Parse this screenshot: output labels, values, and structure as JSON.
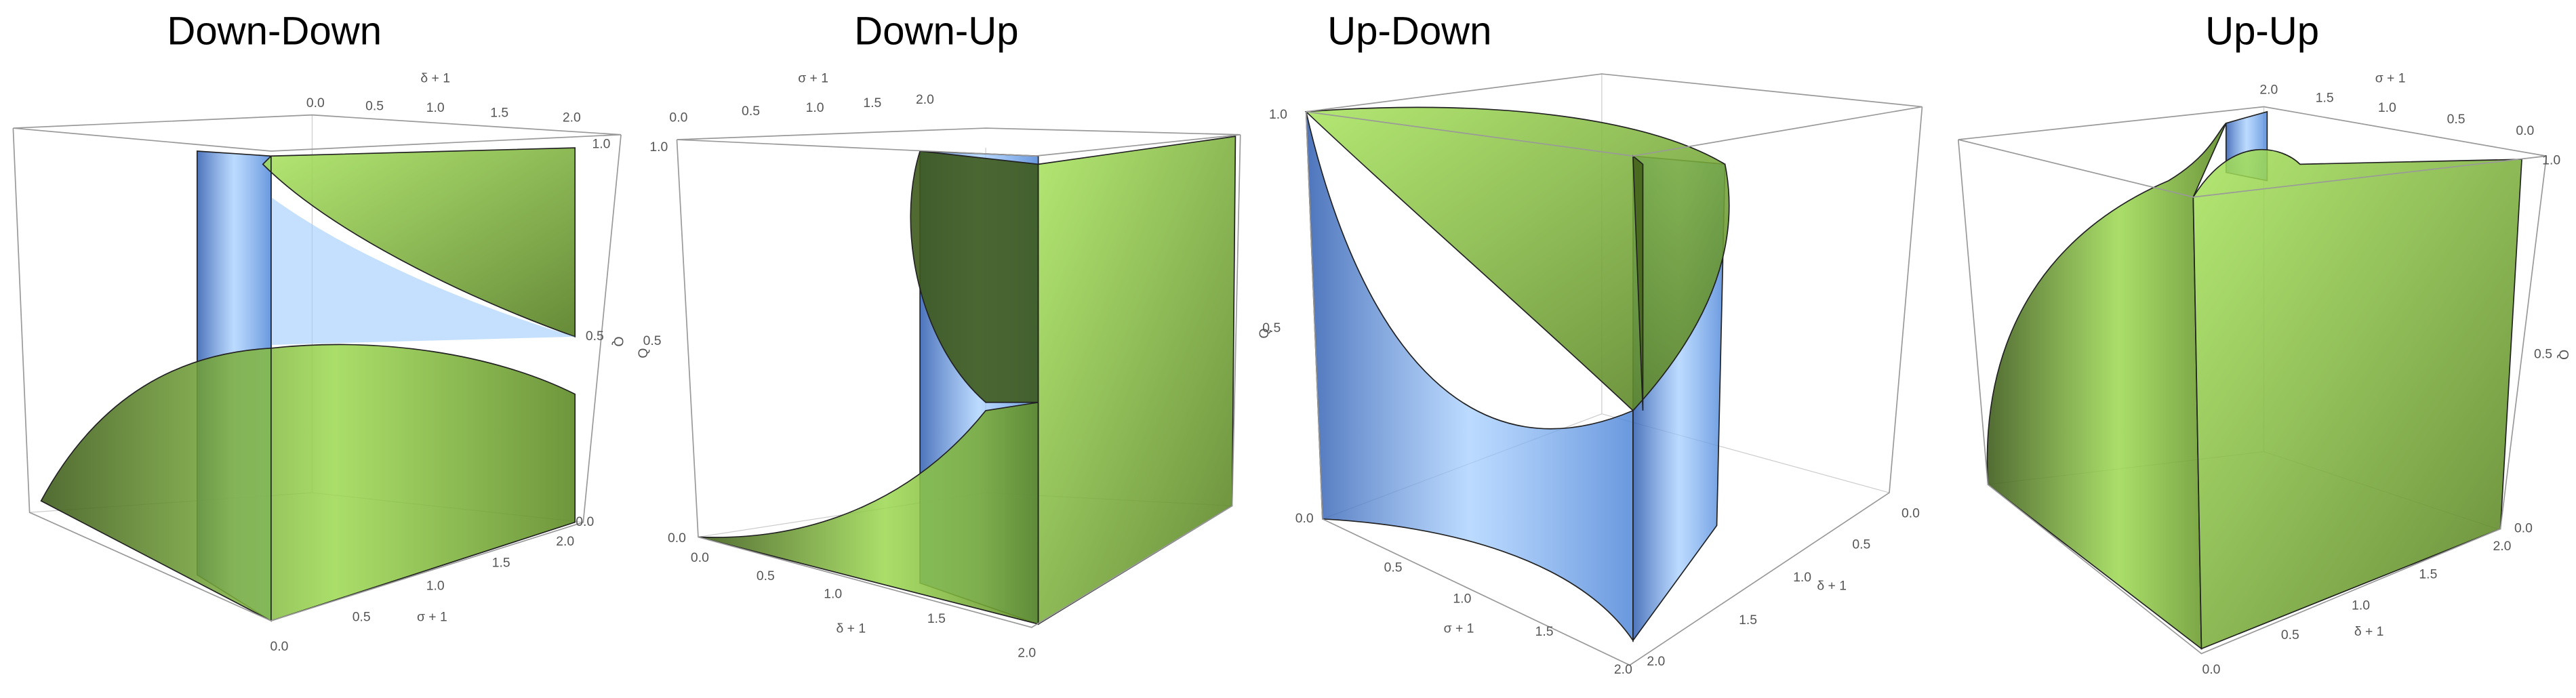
{
  "panels": [
    {
      "title": "Down-Down",
      "top_axis": {
        "label": "δ + 1",
        "ticks": [
          "0.0",
          "0.5",
          "1.0",
          "1.5",
          "2.0"
        ]
      },
      "q_axis": {
        "label": "Q",
        "ticks": [
          "1.0",
          "0.5",
          "0.0"
        ]
      },
      "bottom_axis": {
        "label": "σ + 1",
        "ticks": [
          "2.0",
          "1.5",
          "1.0",
          "0.5",
          "0.0"
        ]
      }
    },
    {
      "title": "Down-Up",
      "top_axis": {
        "label": "σ + 1",
        "ticks": [
          "0.0",
          "0.5",
          "1.0",
          "1.5",
          "2.0"
        ]
      },
      "q_axis": {
        "label": "Q",
        "ticks": [
          "1.0",
          "0.5",
          "0.0"
        ]
      },
      "bottom_axis": {
        "label": "δ + 1",
        "ticks": [
          "0.0",
          "0.5",
          "1.0",
          "1.5",
          "2.0"
        ]
      }
    },
    {
      "title": "Up-Down",
      "q_axis": {
        "label": "Q",
        "ticks": [
          "1.0",
          "0.5",
          "0.0"
        ]
      },
      "bottom_axis": {
        "label": "σ + 1",
        "ticks": [
          "0.5",
          "1.0",
          "1.5",
          "2.0"
        ]
      },
      "right_axis": {
        "label": "δ + 1",
        "ticks": [
          "0.0",
          "0.5",
          "1.0",
          "1.5",
          "2.0"
        ]
      }
    },
    {
      "title": "Up-Up",
      "top_axis": {
        "label": "σ + 1",
        "ticks": [
          "2.0",
          "1.5",
          "1.0",
          "0.5",
          "0.0"
        ]
      },
      "q_axis": {
        "label": "Q",
        "ticks": [
          "1.0",
          "0.5",
          "0.0"
        ]
      },
      "bottom_axis": {
        "label": "δ + 1",
        "ticks": [
          "0.0",
          "0.5",
          "1.0",
          "1.5",
          "2.0"
        ]
      }
    }
  ]
}
